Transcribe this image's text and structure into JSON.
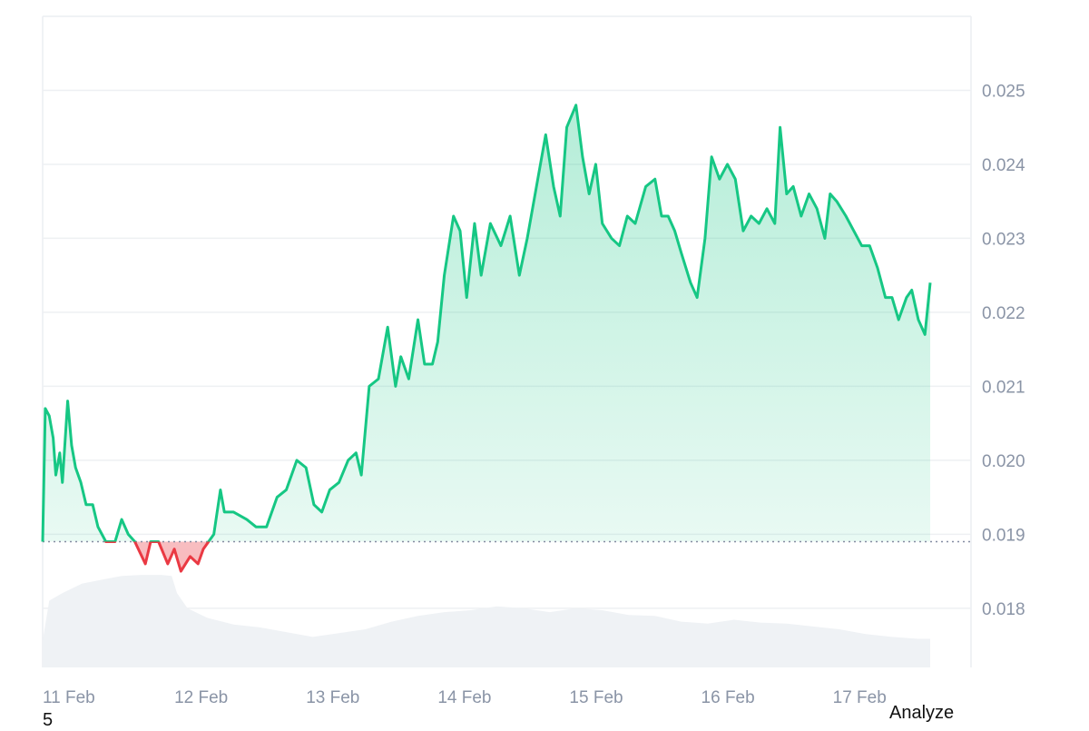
{
  "chart_data": {
    "type": "area",
    "x_unit": "date",
    "x_ticks": [
      "11 Feb",
      "12 Feb",
      "13 Feb",
      "14 Feb",
      "15 Feb",
      "16 Feb",
      "17 Feb"
    ],
    "y_ticks": [
      "0.025",
      "0.024",
      "0.023",
      "0.022",
      "0.021",
      "0.020",
      "0.019",
      "0.018"
    ],
    "ylim": [
      0.0172,
      0.026
    ],
    "x_range_days": [
      0,
      7.05
    ],
    "baseline": 0.0189,
    "grid": true,
    "y_axis_side": "right",
    "colors": {
      "up": "#16c784",
      "down": "#ea3943",
      "up_fill": "#16c784",
      "down_fill": "#ea3943",
      "grid": "#eef0f3",
      "volume": "#eff2f5",
      "baseline_dots": "#858ca2",
      "axis_text": "#8a94a6"
    },
    "price_series": {
      "name": "",
      "points": [
        [
          0.0,
          0.0189
        ],
        [
          0.02,
          0.0207
        ],
        [
          0.05,
          0.0206
        ],
        [
          0.08,
          0.0203
        ],
        [
          0.1,
          0.0198
        ],
        [
          0.13,
          0.0201
        ],
        [
          0.15,
          0.0197
        ],
        [
          0.19,
          0.0208
        ],
        [
          0.22,
          0.0202
        ],
        [
          0.25,
          0.0199
        ],
        [
          0.29,
          0.0197
        ],
        [
          0.33,
          0.0194
        ],
        [
          0.38,
          0.0194
        ],
        [
          0.42,
          0.0191
        ],
        [
          0.48,
          0.0189
        ],
        [
          0.55,
          0.0189
        ],
        [
          0.6,
          0.0192
        ],
        [
          0.65,
          0.019
        ],
        [
          0.7,
          0.0189
        ],
        [
          0.78,
          0.0186
        ],
        [
          0.82,
          0.0189
        ],
        [
          0.88,
          0.0189
        ],
        [
          0.95,
          0.0186
        ],
        [
          1.0,
          0.0188
        ],
        [
          1.05,
          0.0185
        ],
        [
          1.12,
          0.0187
        ],
        [
          1.18,
          0.0186
        ],
        [
          1.22,
          0.0188
        ],
        [
          1.3,
          0.019
        ],
        [
          1.35,
          0.0196
        ],
        [
          1.38,
          0.0193
        ],
        [
          1.45,
          0.0193
        ],
        [
          1.55,
          0.0192
        ],
        [
          1.62,
          0.0191
        ],
        [
          1.7,
          0.0191
        ],
        [
          1.78,
          0.0195
        ],
        [
          1.85,
          0.0196
        ],
        [
          1.93,
          0.02
        ],
        [
          2.0,
          0.0199
        ],
        [
          2.06,
          0.0194
        ],
        [
          2.12,
          0.0193
        ],
        [
          2.18,
          0.0196
        ],
        [
          2.25,
          0.0197
        ],
        [
          2.32,
          0.02
        ],
        [
          2.38,
          0.0201
        ],
        [
          2.42,
          0.0198
        ],
        [
          2.48,
          0.021
        ],
        [
          2.55,
          0.0211
        ],
        [
          2.62,
          0.0218
        ],
        [
          2.68,
          0.021
        ],
        [
          2.72,
          0.0214
        ],
        [
          2.78,
          0.0211
        ],
        [
          2.85,
          0.0219
        ],
        [
          2.9,
          0.0213
        ],
        [
          2.96,
          0.0213
        ],
        [
          3.0,
          0.0216
        ],
        [
          3.05,
          0.0225
        ],
        [
          3.12,
          0.0233
        ],
        [
          3.17,
          0.0231
        ],
        [
          3.22,
          0.0222
        ],
        [
          3.28,
          0.0232
        ],
        [
          3.33,
          0.0225
        ],
        [
          3.4,
          0.0232
        ],
        [
          3.48,
          0.0229
        ],
        [
          3.55,
          0.0233
        ],
        [
          3.62,
          0.0225
        ],
        [
          3.68,
          0.023
        ],
        [
          3.75,
          0.0237
        ],
        [
          3.82,
          0.0244
        ],
        [
          3.88,
          0.0237
        ],
        [
          3.93,
          0.0233
        ],
        [
          3.98,
          0.0245
        ],
        [
          4.05,
          0.0248
        ],
        [
          4.1,
          0.0241
        ],
        [
          4.15,
          0.0236
        ],
        [
          4.2,
          0.024
        ],
        [
          4.25,
          0.0232
        ],
        [
          4.32,
          0.023
        ],
        [
          4.38,
          0.0229
        ],
        [
          4.44,
          0.0233
        ],
        [
          4.5,
          0.0232
        ],
        [
          4.58,
          0.0237
        ],
        [
          4.65,
          0.0238
        ],
        [
          4.7,
          0.0233
        ],
        [
          4.75,
          0.0233
        ],
        [
          4.8,
          0.0231
        ],
        [
          4.85,
          0.0228
        ],
        [
          4.92,
          0.0224
        ],
        [
          4.97,
          0.0222
        ],
        [
          5.03,
          0.023
        ],
        [
          5.08,
          0.0241
        ],
        [
          5.14,
          0.0238
        ],
        [
          5.2,
          0.024
        ],
        [
          5.26,
          0.0238
        ],
        [
          5.32,
          0.0231
        ],
        [
          5.38,
          0.0233
        ],
        [
          5.44,
          0.0232
        ],
        [
          5.5,
          0.0234
        ],
        [
          5.56,
          0.0232
        ],
        [
          5.6,
          0.0245
        ],
        [
          5.65,
          0.0236
        ],
        [
          5.7,
          0.0237
        ],
        [
          5.76,
          0.0233
        ],
        [
          5.82,
          0.0236
        ],
        [
          5.88,
          0.0234
        ],
        [
          5.94,
          0.023
        ],
        [
          5.98,
          0.0236
        ],
        [
          6.03,
          0.0235
        ],
        [
          6.1,
          0.0233
        ],
        [
          6.16,
          0.0231
        ],
        [
          6.22,
          0.0229
        ],
        [
          6.28,
          0.0229
        ],
        [
          6.34,
          0.0226
        ],
        [
          6.4,
          0.0222
        ],
        [
          6.45,
          0.0222
        ],
        [
          6.5,
          0.0219
        ],
        [
          6.56,
          0.0222
        ],
        [
          6.6,
          0.0223
        ],
        [
          6.65,
          0.0219
        ],
        [
          6.7,
          0.0217
        ],
        [
          6.74,
          0.0224
        ]
      ]
    },
    "volume_series": {
      "name": "",
      "points": [
        [
          0.0,
          0.28
        ],
        [
          0.05,
          0.7
        ],
        [
          0.15,
          0.78
        ],
        [
          0.3,
          0.88
        ],
        [
          0.45,
          0.92
        ],
        [
          0.6,
          0.96
        ],
        [
          0.75,
          0.97
        ],
        [
          0.9,
          0.97
        ],
        [
          0.98,
          0.96
        ],
        [
          1.02,
          0.78
        ],
        [
          1.1,
          0.62
        ],
        [
          1.25,
          0.52
        ],
        [
          1.45,
          0.45
        ],
        [
          1.65,
          0.42
        ],
        [
          1.85,
          0.37
        ],
        [
          2.05,
          0.32
        ],
        [
          2.25,
          0.36
        ],
        [
          2.45,
          0.4
        ],
        [
          2.65,
          0.48
        ],
        [
          2.85,
          0.54
        ],
        [
          3.05,
          0.58
        ],
        [
          3.25,
          0.6
        ],
        [
          3.45,
          0.64
        ],
        [
          3.65,
          0.62
        ],
        [
          3.85,
          0.58
        ],
        [
          4.05,
          0.62
        ],
        [
          4.25,
          0.6
        ],
        [
          4.45,
          0.55
        ],
        [
          4.65,
          0.54
        ],
        [
          4.85,
          0.48
        ],
        [
          5.05,
          0.46
        ],
        [
          5.25,
          0.5
        ],
        [
          5.45,
          0.47
        ],
        [
          5.65,
          0.46
        ],
        [
          5.85,
          0.43
        ],
        [
          6.05,
          0.4
        ],
        [
          6.25,
          0.35
        ],
        [
          6.45,
          0.32
        ],
        [
          6.65,
          0.3
        ],
        [
          6.74,
          0.3
        ]
      ]
    }
  },
  "footer": {
    "page_number": "5",
    "analyze_label": "Analyze"
  }
}
